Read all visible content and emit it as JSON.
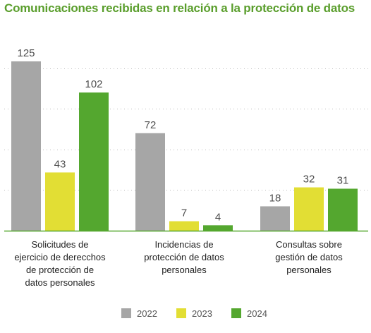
{
  "title": "Comunicaciones recibidas en relación a la protección de datos",
  "colors": {
    "2022": "#a6a6a6",
    "2023": "#e2de34",
    "2024": "#54a72f",
    "title": "#5a9e2c",
    "gridline": "#bbbbbb",
    "baseline": "#54a72f"
  },
  "chart_data": {
    "type": "bar",
    "title": "Comunicaciones recibidas en relación a la protección de datos",
    "categories": [
      [
        "Solicitudes de",
        "ejercicio de derecchos",
        "de protección de",
        "datos personales"
      ],
      [
        "Incidencias de",
        "protección de datos",
        "personales"
      ],
      [
        "Consultas sobre",
        "gestión de datos",
        "personales"
      ]
    ],
    "series": [
      {
        "name": "2022",
        "values": [
          125,
          72,
          18
        ],
        "labels": [
          "125",
          "72",
          "18"
        ]
      },
      {
        "name": "2023",
        "values": [
          43,
          7,
          32
        ],
        "labels": [
          "43",
          "7",
          "32"
        ]
      },
      {
        "name": "2024",
        "values": [
          102,
          4,
          31
        ],
        "labels": [
          "102",
          "4",
          "31"
        ]
      }
    ],
    "ylim": [
      0,
      140
    ],
    "grid": true,
    "legend_position": "bottom-center",
    "xlabel": "",
    "ylabel": ""
  },
  "legend": [
    {
      "label": "2022"
    },
    {
      "label": "2023"
    },
    {
      "label": "2024"
    }
  ]
}
